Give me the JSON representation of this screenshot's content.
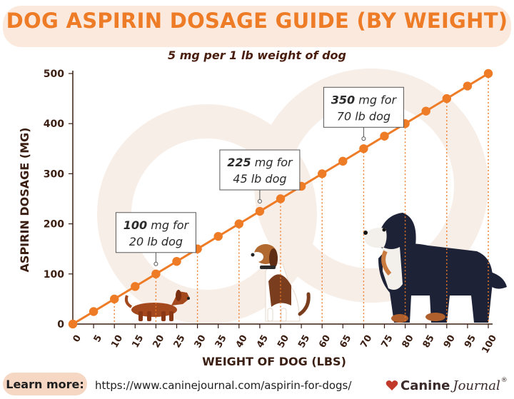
{
  "title": "DOG ASPIRIN DOSAGE GUIDE (BY WEIGHT)",
  "subtitle": "5 mg per 1 lb weight of dog",
  "colors": {
    "accent": "#ee7b26",
    "text_dark": "#3a1e12",
    "banner_bg": "#fbe9dd",
    "pill_bg": "#f6d7c3",
    "brand_red": "#c0392b"
  },
  "chart_data": {
    "type": "line",
    "xlabel": "WEIGHT OF DOG (LBS)",
    "ylabel": "ASPIRIN DOSAGE (MG)",
    "xlim": [
      0,
      100
    ],
    "ylim": [
      0,
      500
    ],
    "x_ticks": [
      0,
      5,
      10,
      15,
      20,
      25,
      30,
      35,
      40,
      45,
      50,
      55,
      60,
      65,
      70,
      75,
      80,
      85,
      90,
      95,
      100
    ],
    "y_ticks": [
      0,
      100,
      200,
      300,
      400,
      500
    ],
    "series": [
      {
        "x": [
          0,
          5,
          10,
          15,
          20,
          25,
          30,
          35,
          40,
          45,
          50,
          55,
          60,
          65,
          70,
          75,
          80,
          85,
          90,
          95,
          100
        ],
        "y": [
          0,
          25,
          50,
          75,
          100,
          125,
          150,
          175,
          200,
          225,
          250,
          275,
          300,
          325,
          350,
          375,
          400,
          425,
          450,
          475,
          500
        ]
      }
    ],
    "annotations": [
      {
        "x": 20,
        "y": 100,
        "dose": "100",
        "unit_text": " mg for",
        "weight_text": "20 lb dog"
      },
      {
        "x": 45,
        "y": 225,
        "dose": "225",
        "unit_text": " mg for",
        "weight_text": "45 lb dog"
      },
      {
        "x": 70,
        "y": 350,
        "dose": "350",
        "unit_text": " mg for",
        "weight_text": "70 lb dog"
      }
    ],
    "grid": false,
    "drop_lines": true
  },
  "dogs": [
    "dachshund-icon",
    "beagle-icon",
    "bernese-mountain-dog-icon"
  ],
  "footer": {
    "learn_more": "Learn more:",
    "url": "https://www.caninejournal.com/aspirin-for-dogs/",
    "brand_canine": "Canine",
    "brand_journal": "Journal",
    "brand_reg": "®"
  }
}
